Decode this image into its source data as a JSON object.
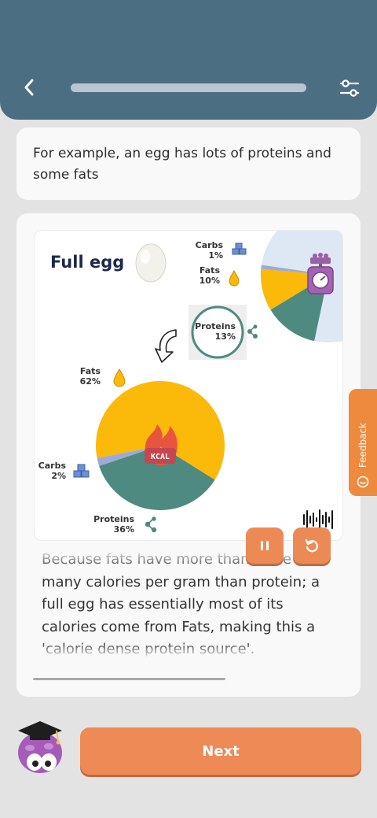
{
  "header": {
    "back_icon": "chevron-left-icon",
    "settings_icon": "sliders-icon",
    "progress_fraction": 1.0
  },
  "intro": {
    "text": "For example, an egg has lots of proteins and some fats"
  },
  "illustration": {
    "title": "Full egg",
    "badge": "KCAL",
    "weight_pie": {
      "labels": [
        {
          "name": "Carbs",
          "value": "1%"
        },
        {
          "name": "Fats",
          "value": "10%"
        },
        {
          "name": "Proteins",
          "value": "13%"
        }
      ]
    },
    "calorie_pie": {
      "labels": [
        {
          "name": "Fats",
          "value": "62%"
        },
        {
          "name": "Carbs",
          "value": "2%"
        },
        {
          "name": "Proteins",
          "value": "36%"
        }
      ]
    },
    "colors": {
      "fats": "#fbb90a",
      "proteins": "#4e8a80",
      "carbs": "#9eaad6",
      "rest": "#dde8f4"
    }
  },
  "narration": {
    "text": "Because fats have more than twice as many calories per gram than protein; a full egg has essentially most of its calories come from Fats, making this a 'calorie dense protein source'."
  },
  "controls": {
    "pause_icon": "pause-icon",
    "replay_icon": "replay-icon",
    "waveform_icon": "waveform-icon"
  },
  "feedback": {
    "label": "Feedback"
  },
  "next_button": {
    "label": "Next"
  }
}
